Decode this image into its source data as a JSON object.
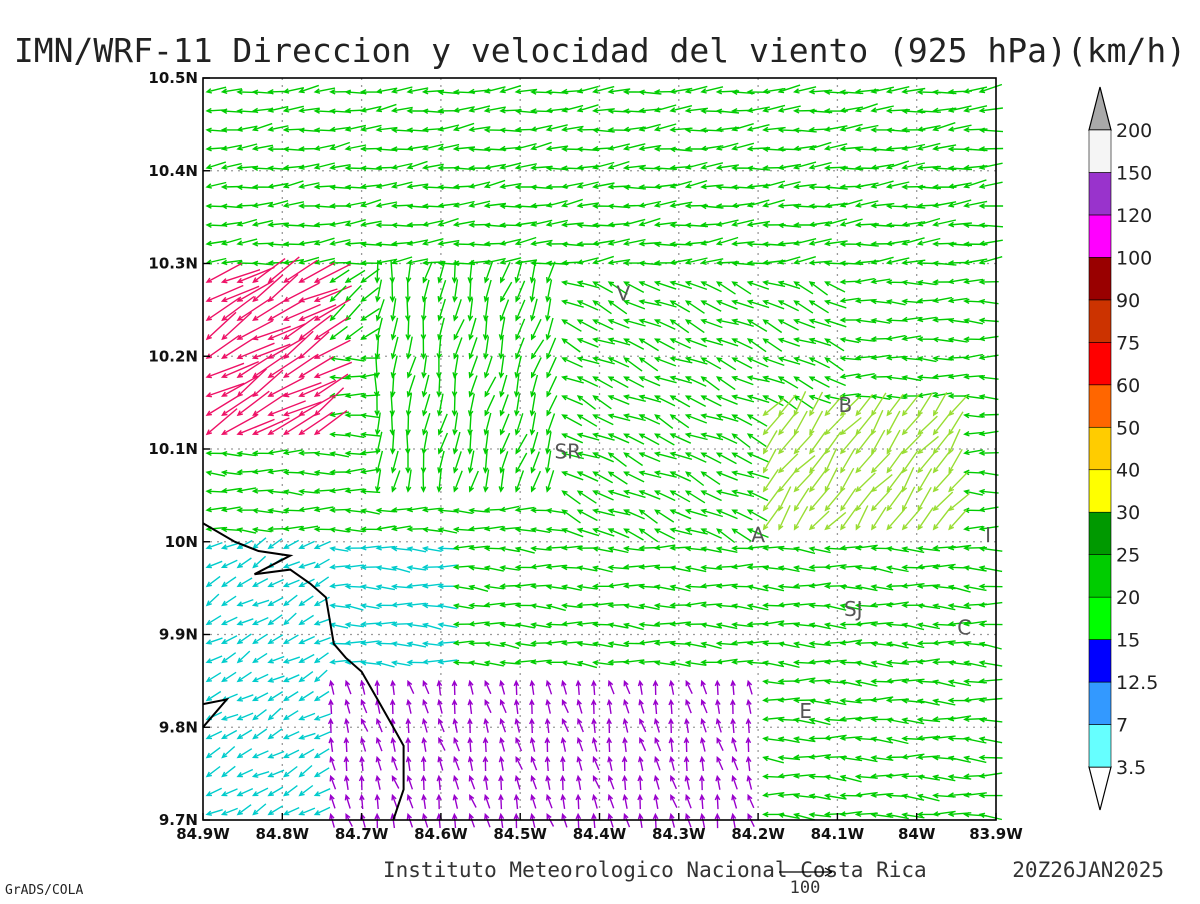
{
  "title": "IMN/WRF-11 Direccion y velocidad del viento (925 hPa)(km/h)",
  "footer": {
    "institution": "Instituto Meteorologico Nacional Costa Rica",
    "datetime": "20Z26JAN2025",
    "software": "GrADS/COLA",
    "reference_vector_label": "100"
  },
  "map": {
    "lon_range": [
      -84.9,
      -83.9
    ],
    "lat_range": [
      9.7,
      10.5
    ],
    "x_ticks": [
      {
        "value": -84.9,
        "label": "84.9W"
      },
      {
        "value": -84.8,
        "label": "84.8W"
      },
      {
        "value": -84.7,
        "label": "84.7W"
      },
      {
        "value": -84.6,
        "label": "84.6W"
      },
      {
        "value": -84.5,
        "label": "84.5W"
      },
      {
        "value": -84.4,
        "label": "84.4W"
      },
      {
        "value": -84.3,
        "label": "84.3W"
      },
      {
        "value": -84.2,
        "label": "84.2W"
      },
      {
        "value": -84.1,
        "label": "84.1W"
      },
      {
        "value": -84.0,
        "label": "84W"
      },
      {
        "value": -83.9,
        "label": "83.9W"
      }
    ],
    "y_ticks": [
      {
        "value": 9.7,
        "label": "9.7N"
      },
      {
        "value": 9.8,
        "label": "9.8N"
      },
      {
        "value": 9.9,
        "label": "9.9N"
      },
      {
        "value": 10.0,
        "label": "10N"
      },
      {
        "value": 10.1,
        "label": "10.1N"
      },
      {
        "value": 10.2,
        "label": "10.2N"
      },
      {
        "value": 10.3,
        "label": "10.3N"
      },
      {
        "value": 10.4,
        "label": "10.4N"
      },
      {
        "value": 10.5,
        "label": "10.5N"
      }
    ],
    "grid": true,
    "places": [
      {
        "label": "V",
        "lon": -84.37,
        "lat": 10.26
      },
      {
        "label": "SR",
        "lon": -84.44,
        "lat": 10.09
      },
      {
        "label": "B",
        "lon": -84.09,
        "lat": 10.14
      },
      {
        "label": "A",
        "lon": -84.2,
        "lat": 10.0
      },
      {
        "label": "I",
        "lon": -83.91,
        "lat": 10.0
      },
      {
        "label": "SJ",
        "lon": -84.08,
        "lat": 9.92
      },
      {
        "label": "C",
        "lon": -83.94,
        "lat": 9.9
      },
      {
        "label": "E",
        "lon": -84.14,
        "lat": 9.81
      }
    ],
    "coastline": [
      [
        -84.9,
        10.02
      ],
      [
        -84.86,
        10.0
      ],
      [
        -84.83,
        9.99
      ],
      [
        -84.79,
        9.985
      ],
      [
        -84.835,
        9.965
      ],
      [
        -84.79,
        9.97
      ],
      [
        -84.765,
        9.955
      ],
      [
        -84.745,
        9.94
      ],
      [
        -84.735,
        9.89
      ],
      [
        -84.72,
        9.875
      ],
      [
        -84.7,
        9.86
      ],
      [
        -84.68,
        9.83
      ],
      [
        -84.66,
        9.8
      ],
      [
        -84.647,
        9.78
      ],
      [
        -84.647,
        9.733
      ],
      [
        -84.66,
        9.7
      ]
    ],
    "coastline_b": [
      [
        -84.9,
        9.825
      ],
      [
        -84.87,
        9.83
      ],
      [
        -84.9,
        9.8
      ]
    ]
  },
  "colorbar": {
    "labels": [
      "3.5",
      "7",
      "12.5",
      "15",
      "20",
      "25",
      "30",
      "40",
      "50",
      "60",
      "75",
      "90",
      "100",
      "120",
      "150",
      "200"
    ],
    "colors": [
      "#66ffff",
      "#3399ff",
      "#0000ff",
      "#00ff00",
      "#00cc00",
      "#009900",
      "#ffff00",
      "#ffcc00",
      "#ff6600",
      "#ff0000",
      "#cc3300",
      "#990000",
      "#ff00ff",
      "#9933cc",
      "#f5f5f5",
      "#a9a9a9"
    ],
    "lower_arrow_color": "#ffffff"
  },
  "wind_colors": {
    "calm": "#9900cc",
    "weak": "#3399ff",
    "light": "#00cccc",
    "moderate": "#00cc00",
    "fresh": "#99dd33",
    "strong": "#ffcc00",
    "very_strong": "#ff6600",
    "extreme": "#ee1166"
  }
}
